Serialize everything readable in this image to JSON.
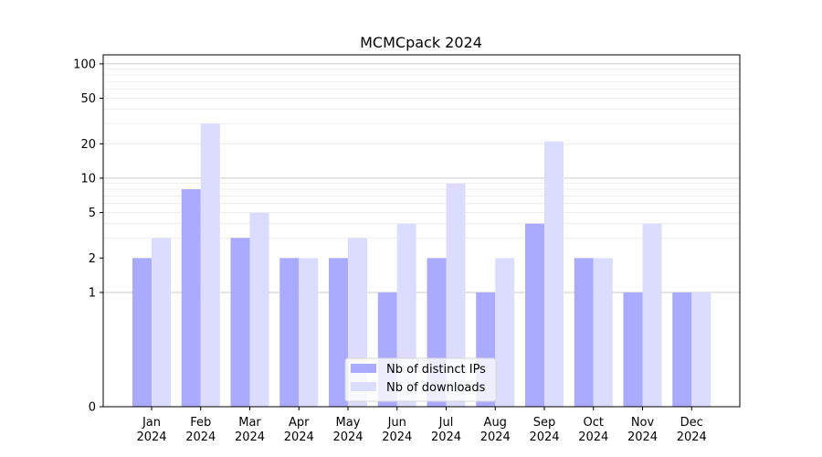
{
  "chart_data": {
    "type": "bar",
    "title": "MCMCpack 2024",
    "xlabel": "",
    "ylabel": "",
    "yscale": "symlog",
    "ylim": [
      0,
      120
    ],
    "y_ticks": [
      0,
      1,
      2,
      5,
      10,
      20,
      50,
      100
    ],
    "grid": true,
    "legend_position": "bottom-center",
    "categories": [
      [
        "Jan",
        "2024"
      ],
      [
        "Feb",
        "2024"
      ],
      [
        "Mar",
        "2024"
      ],
      [
        "Apr",
        "2024"
      ],
      [
        "May",
        "2024"
      ],
      [
        "Jun",
        "2024"
      ],
      [
        "Jul",
        "2024"
      ],
      [
        "Aug",
        "2024"
      ],
      [
        "Sep",
        "2024"
      ],
      [
        "Oct",
        "2024"
      ],
      [
        "Nov",
        "2024"
      ],
      [
        "Dec",
        "2024"
      ]
    ],
    "series": [
      {
        "name": "Nb of distinct IPs",
        "color": "#aaaaff",
        "values": [
          2,
          8,
          3,
          2,
          2,
          1,
          2,
          1,
          4,
          2,
          1,
          1
        ]
      },
      {
        "name": "Nb of downloads",
        "color": "#dcdcff",
        "values": [
          3,
          30,
          5,
          2,
          3,
          4,
          9,
          2,
          21,
          2,
          4,
          1
        ]
      }
    ]
  }
}
